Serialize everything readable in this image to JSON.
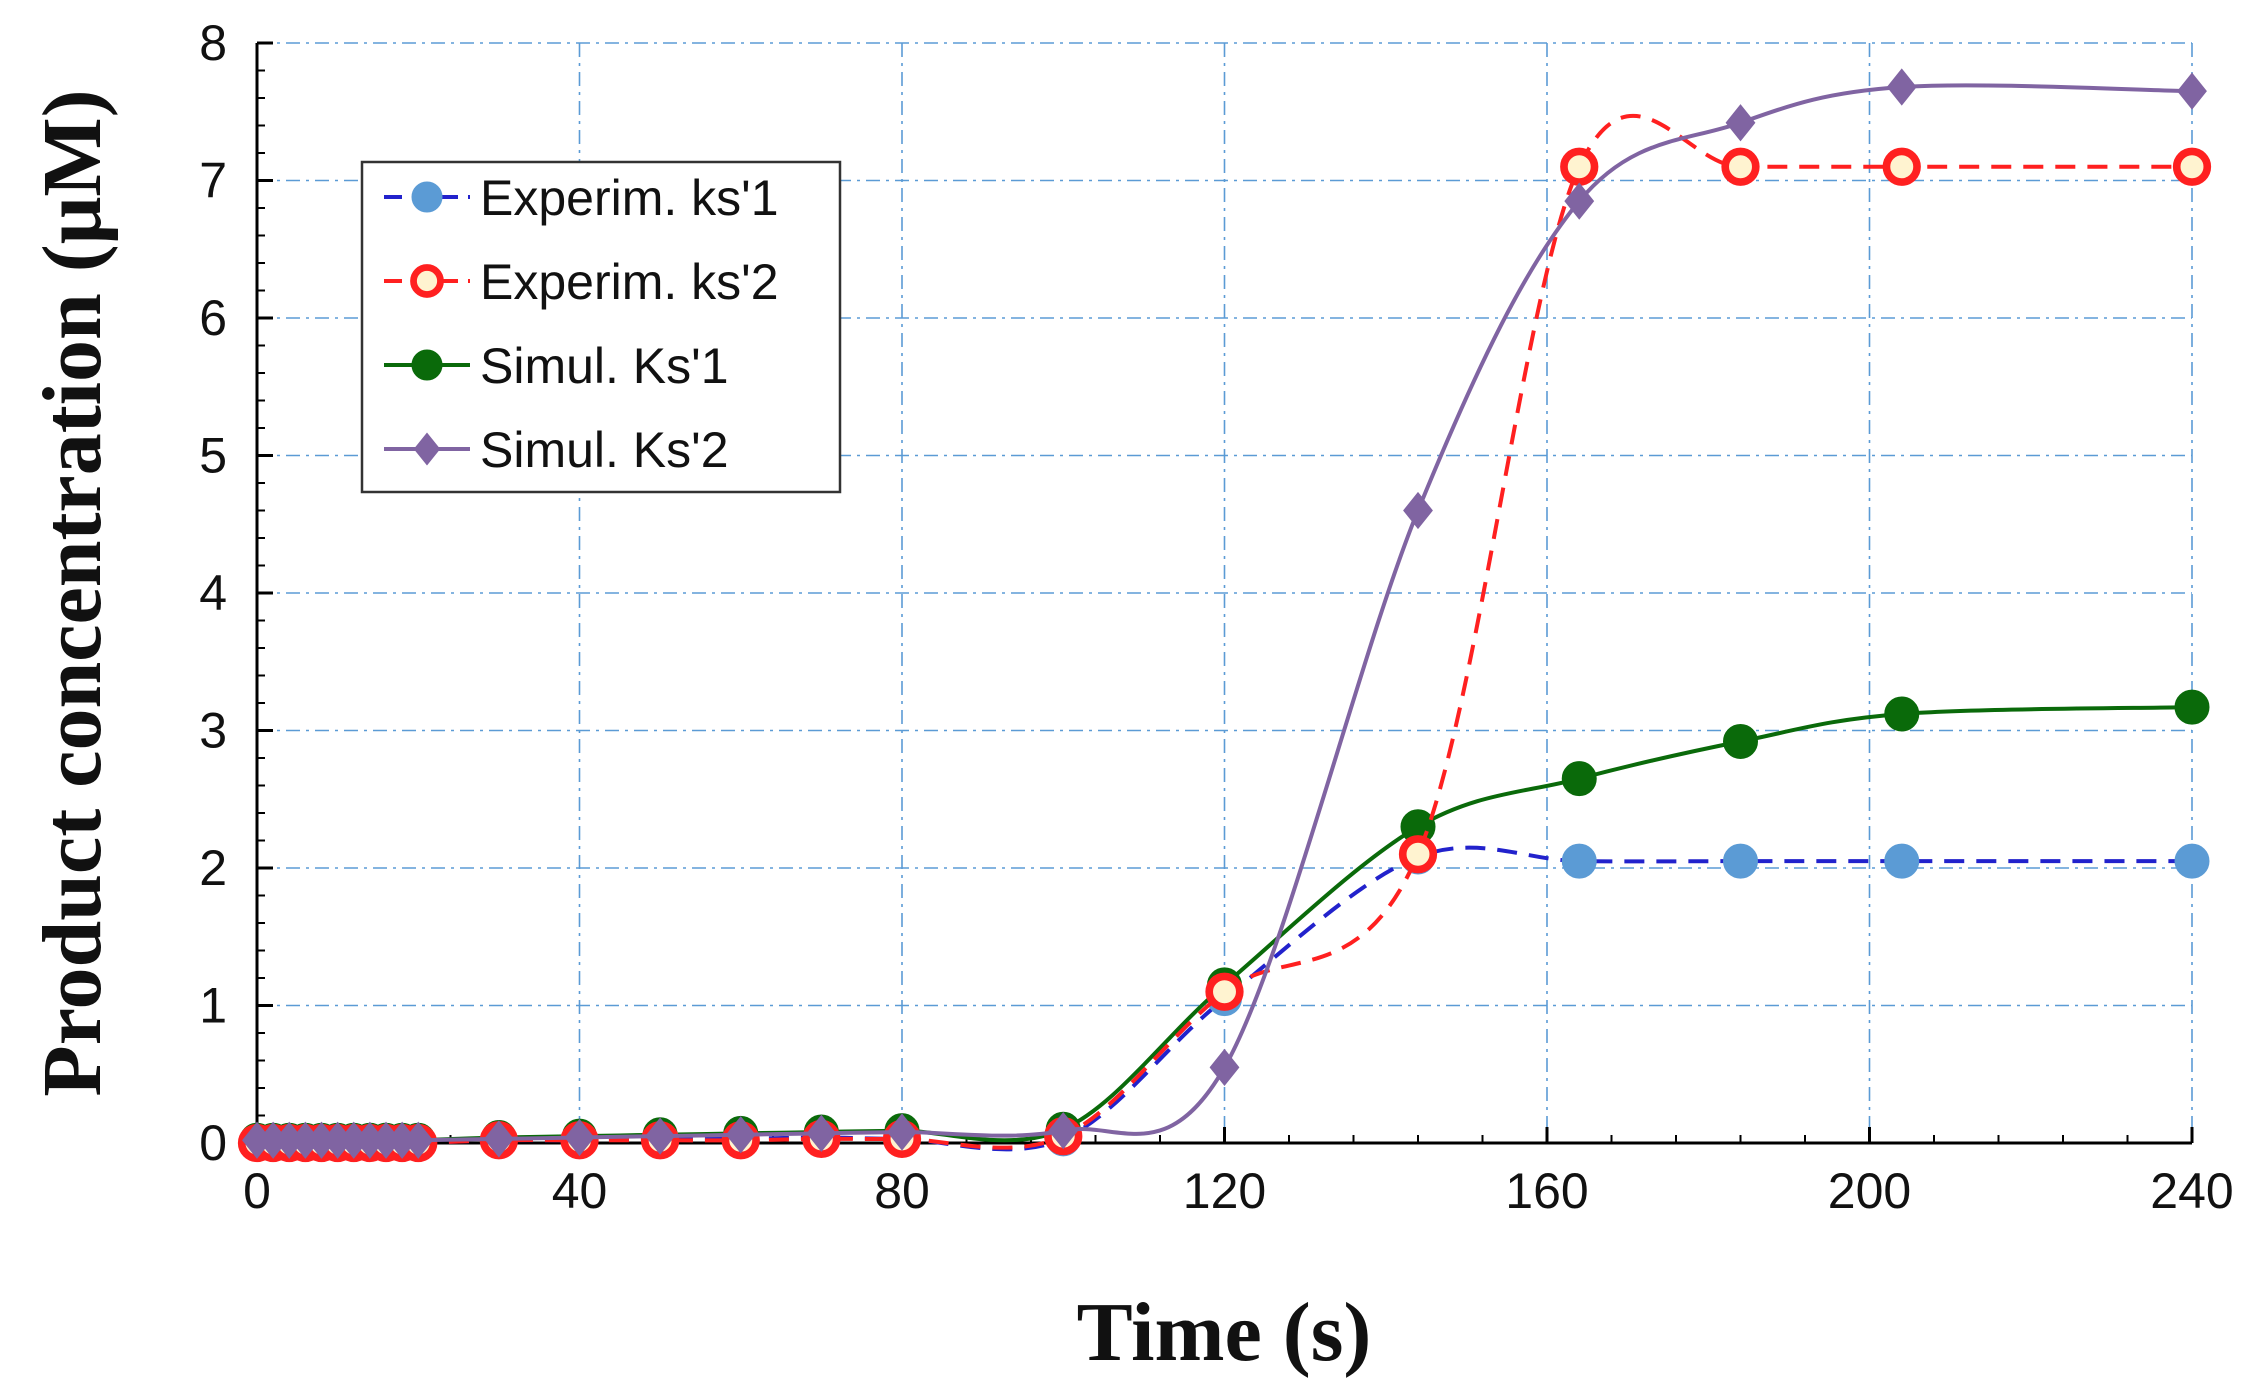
{
  "chart_data": {
    "type": "line",
    "title": "",
    "xlabel": "Time (s)",
    "ylabel": "Product concentration (μM)",
    "xlim": [
      0,
      240
    ],
    "ylim": [
      0,
      8
    ],
    "xticks": [
      0,
      40,
      80,
      120,
      160,
      200,
      240
    ],
    "yticks": [
      0,
      1,
      2,
      3,
      4,
      5,
      6,
      7,
      8
    ],
    "grid": true,
    "legend_position": "top-left",
    "series": [
      {
        "name": "Experim. ks'1",
        "color": "#5b9bd5",
        "line_color": "#2222cc",
        "line_style": "dashed",
        "marker": "circle-filled",
        "x": [
          0,
          2,
          4,
          6,
          8,
          10,
          12,
          14,
          16,
          18,
          20,
          30,
          40,
          50,
          60,
          70,
          80,
          100,
          120,
          144,
          164,
          184,
          204,
          240
        ],
        "y": [
          0,
          0,
          0,
          0,
          0,
          0,
          0,
          0,
          0,
          0,
          0,
          0.02,
          0.02,
          0.03,
          0.03,
          0.04,
          0.03,
          0.03,
          1.05,
          2.08,
          2.05,
          2.05,
          2.05,
          2.05
        ]
      },
      {
        "name": "Experim. ks'2",
        "color": "#ff2020",
        "line_color": "#ff2020",
        "line_style": "dashed",
        "marker": "circle-open",
        "x": [
          0,
          2,
          4,
          6,
          8,
          10,
          12,
          14,
          16,
          18,
          20,
          30,
          40,
          50,
          60,
          70,
          80,
          100,
          120,
          144,
          164,
          184,
          204,
          240
        ],
        "y": [
          0,
          0,
          0,
          0,
          0,
          0,
          0,
          0,
          0,
          0,
          0,
          0.02,
          0.02,
          0.02,
          0.02,
          0.03,
          0.03,
          0.05,
          1.1,
          2.1,
          7.1,
          7.1,
          7.1,
          7.1
        ]
      },
      {
        "name": "Simul. Ks'1",
        "color": "#0a6a0a",
        "line_color": "#0a6a0a",
        "line_style": "solid",
        "marker": "circle-filled",
        "x": [
          0,
          2,
          4,
          6,
          8,
          10,
          12,
          14,
          16,
          18,
          20,
          30,
          40,
          50,
          60,
          70,
          80,
          100,
          120,
          144,
          164,
          184,
          204,
          240
        ],
        "y": [
          0.02,
          0.02,
          0.02,
          0.02,
          0.02,
          0.02,
          0.02,
          0.02,
          0.02,
          0.02,
          0.02,
          0.04,
          0.05,
          0.06,
          0.07,
          0.08,
          0.09,
          0.1,
          1.15,
          2.3,
          2.65,
          2.92,
          3.12,
          3.17
        ]
      },
      {
        "name": "Simul. Ks'2",
        "color": "#8064a2",
        "line_color": "#8064a2",
        "line_style": "solid",
        "marker": "diamond",
        "x": [
          0,
          2,
          4,
          6,
          8,
          10,
          12,
          14,
          16,
          18,
          20,
          30,
          40,
          50,
          60,
          70,
          80,
          100,
          120,
          144,
          164,
          184,
          204,
          240
        ],
        "y": [
          0.02,
          0.02,
          0.02,
          0.02,
          0.02,
          0.02,
          0.02,
          0.02,
          0.02,
          0.02,
          0.02,
          0.03,
          0.04,
          0.05,
          0.06,
          0.07,
          0.08,
          0.09,
          0.55,
          4.6,
          6.85,
          7.42,
          7.68,
          7.65
        ]
      }
    ]
  }
}
